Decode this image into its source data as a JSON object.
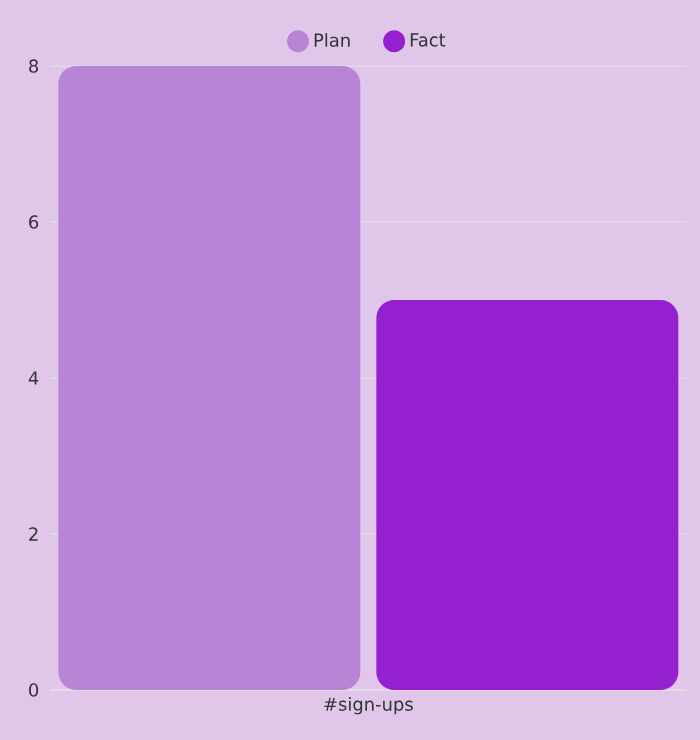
{
  "chart_data": {
    "type": "bar",
    "categories": [
      "#sign-ups"
    ],
    "series": [
      {
        "name": "Plan",
        "color": "#b784d6",
        "values": [
          8
        ]
      },
      {
        "name": "Fact",
        "color": "#9420cf",
        "values": [
          5
        ]
      }
    ],
    "ylim": [
      0,
      8
    ],
    "yticks": [
      0,
      2,
      4,
      6,
      8
    ],
    "grid": "y",
    "legend": "top"
  }
}
